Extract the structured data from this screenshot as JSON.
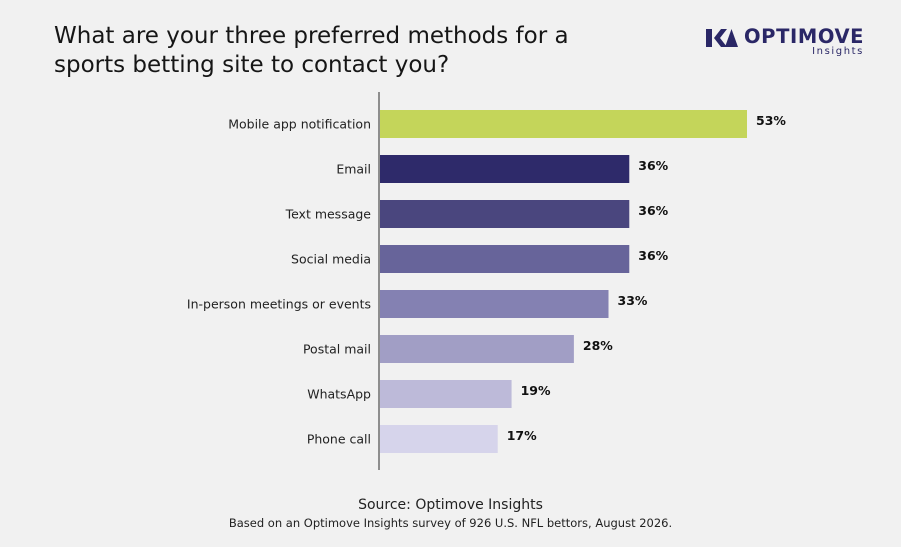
{
  "title": "What are your three preferred methods for a\nsports betting site to contact you?",
  "logo": {
    "name": "OPTIMOVE",
    "sub": "Insights",
    "color": "#2a2766"
  },
  "source": "Source: Optimove Insights",
  "note": "Based on an Optimove Insights survey of 926 U.S. NFL bettors, August 2026.",
  "chart_data": {
    "type": "bar",
    "orientation": "horizontal",
    "categories": [
      "Mobile app notification",
      "Email",
      "Text message",
      "Social media",
      "In-person meetings or events",
      "Postal mail",
      "WhatsApp",
      "Phone call"
    ],
    "values": [
      53,
      36,
      36,
      36,
      33,
      28,
      19,
      17
    ],
    "value_labels": [
      "53%",
      "36%",
      "36%",
      "36%",
      "33%",
      "28%",
      "19%",
      "17%"
    ],
    "colors": [
      "#c4d55a",
      "#2e2a6a",
      "#4a467e",
      "#67649a",
      "#8481b2",
      "#a19ec5",
      "#bdbad9",
      "#d6d4eb"
    ],
    "xlim": [
      0,
      53
    ],
    "grid": false
  }
}
